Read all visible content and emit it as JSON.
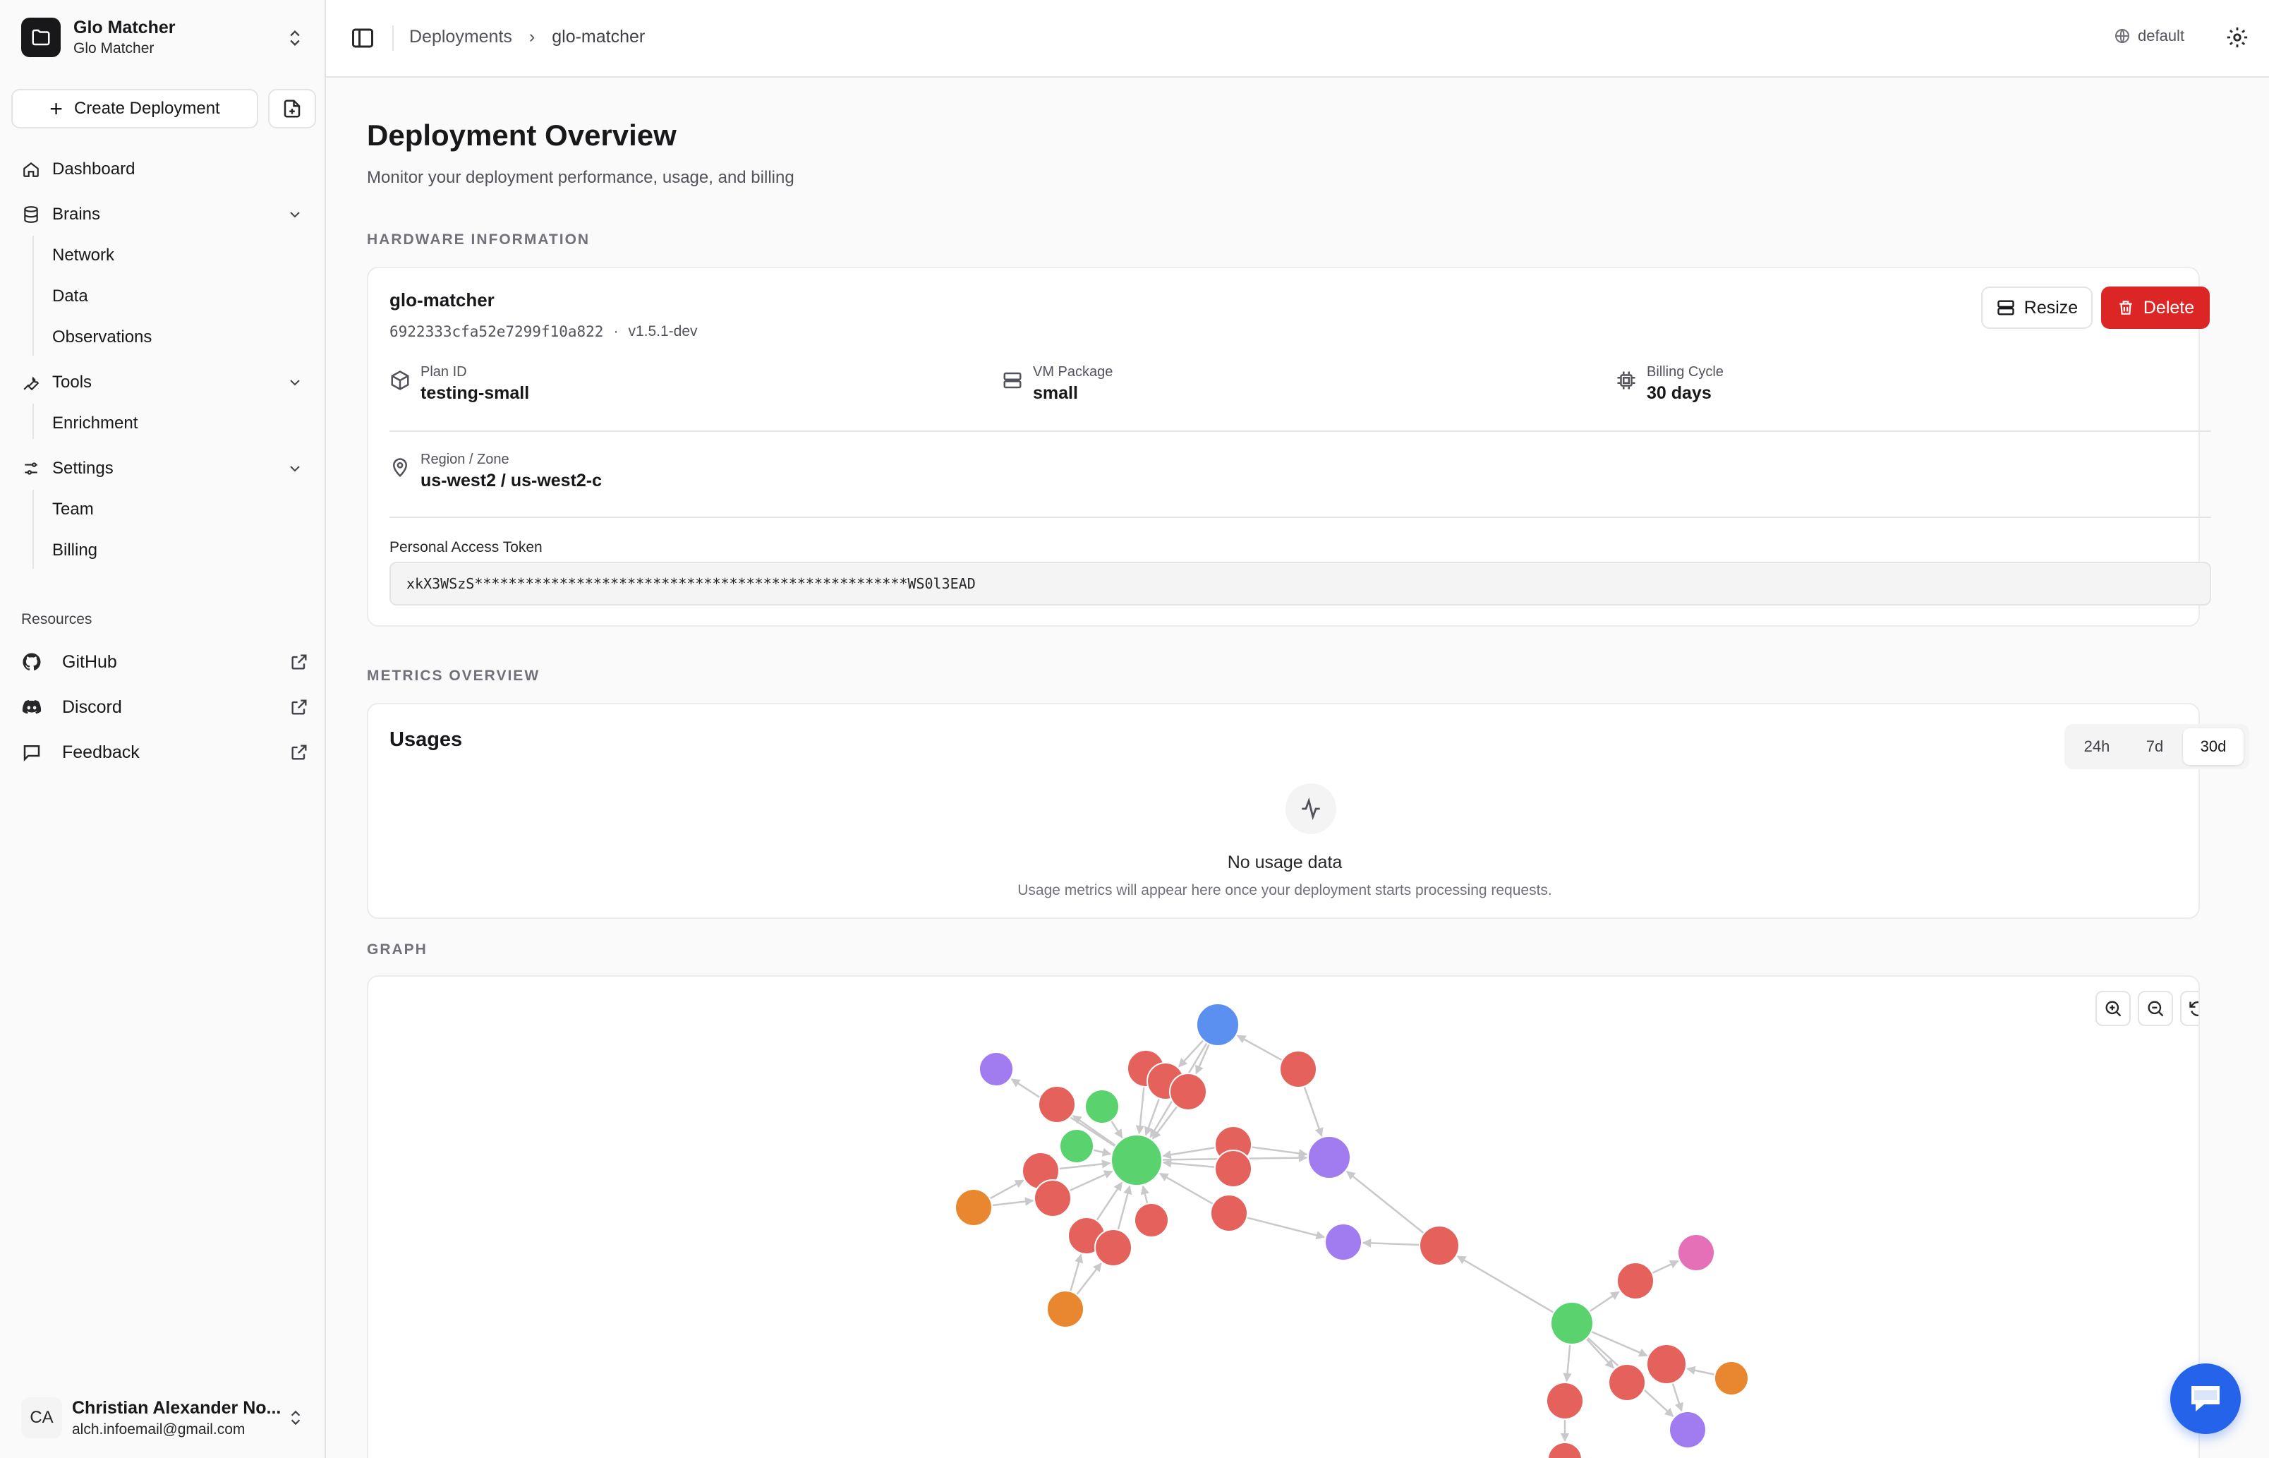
{
  "sidebar": {
    "team": {
      "name": "Glo Matcher",
      "subtitle": "Glo Matcher"
    },
    "create_label": "Create Deployment",
    "nav": {
      "dashboard": "Dashboard",
      "brains": "Brains",
      "brains_items": [
        "Network",
        "Data",
        "Observations"
      ],
      "tools": "Tools",
      "tools_items": [
        "Enrichment"
      ],
      "settings": "Settings",
      "settings_items": [
        "Team",
        "Billing"
      ]
    },
    "resources_label": "Resources",
    "resources": [
      "GitHub",
      "Discord",
      "Feedback"
    ],
    "user": {
      "initials": "CA",
      "name": "Christian Alexander No...",
      "email": "alch.infoemail@gmail.com"
    }
  },
  "topbar": {
    "breadcrumbs": [
      "Deployments",
      "glo-matcher"
    ],
    "environment": "default"
  },
  "page": {
    "title": "Deployment Overview",
    "subtitle": "Monitor your deployment performance, usage, and billing"
  },
  "hardware": {
    "section_label": "HARDWARE INFORMATION",
    "name": "glo-matcher",
    "id": "6922333cfa52e7299f10a822",
    "separator": "·",
    "version": "v1.5.1-dev",
    "resize_label": "Resize",
    "delete_label": "Delete",
    "plan": {
      "label": "Plan ID",
      "value": "testing-small"
    },
    "vm": {
      "label": "VM Package",
      "value": "small"
    },
    "billing": {
      "label": "Billing Cycle",
      "value": "30 days"
    },
    "region": {
      "label": "Region / Zone",
      "value": "us-west2 / us-west2-c"
    },
    "token": {
      "label": "Personal Access Token",
      "value": "xkX3WSzS***************************************************WS0l3EAD"
    }
  },
  "metrics": {
    "section_label": "METRICS OVERVIEW",
    "title": "Usages",
    "ranges": [
      "24h",
      "7d",
      "30d"
    ],
    "active_range": "30d",
    "empty_title": "No usage data",
    "empty_sub": "Usage metrics will appear here once your deployment starts processing requests."
  },
  "graph": {
    "section_label": "GRAPH",
    "colors": {
      "red": "#e5625c",
      "green": "#5ad36f",
      "blue": "#5b8ff0",
      "purple": "#a07cf0",
      "orange": "#e8872f",
      "pink": "#e670b8",
      "edge": "#c9c9cc"
    }
  },
  "colors": {
    "accent_delete": "#dc2626",
    "chat_fab": "#2563eb"
  }
}
